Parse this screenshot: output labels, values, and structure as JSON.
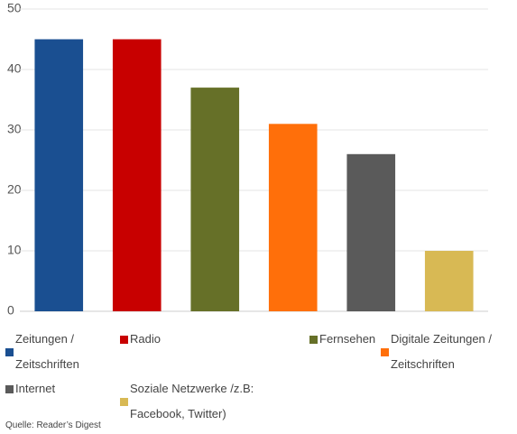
{
  "chart_data": {
    "type": "bar",
    "categories": [
      "Zeitungen / Zeitschriften",
      "Radio",
      "Fernsehen",
      "Digitale Zeitungen / Zeitschriften",
      "Internet",
      "Soziale Netzwerke /z.B: Facebook, Twitter)"
    ],
    "values": [
      45,
      45,
      37,
      31,
      26,
      10
    ],
    "colors": [
      "#1a4f91",
      "#c80000",
      "#667028",
      "#ff6f0a",
      "#5a5a5a",
      "#d8b954"
    ],
    "ylim": [
      0,
      50
    ],
    "yticks": [
      0,
      10,
      20,
      30,
      40,
      50
    ],
    "grid": true,
    "source": "Quelle: Reader’s Digest"
  }
}
